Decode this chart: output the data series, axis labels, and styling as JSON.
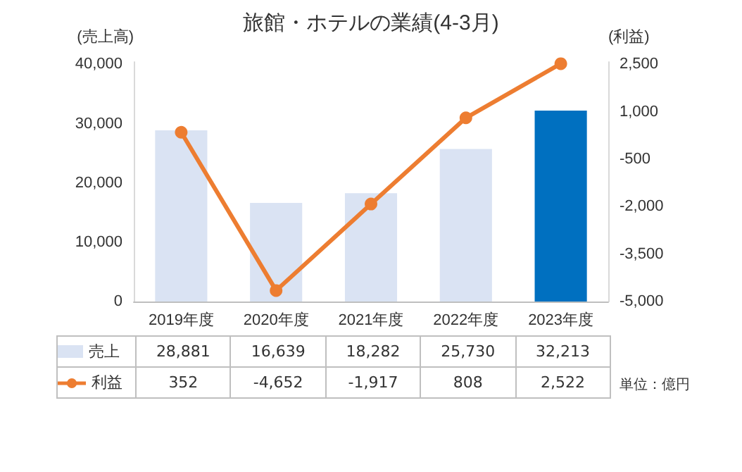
{
  "chart_data": {
    "type": "bar",
    "title": "旅館・ホテルの業績(4-3月)",
    "ylabel": "(売上高)",
    "y2label": "(利益)",
    "categories": [
      "2019年度",
      "2020年度",
      "2021年度",
      "2022年度",
      "2023年度"
    ],
    "series": [
      {
        "name": "売上",
        "type": "bar",
        "color": "#dae3f3",
        "colors": [
          "#dae3f3",
          "#dae3f3",
          "#dae3f3",
          "#dae3f3",
          "#0070c0"
        ],
        "values": [
          28881,
          16639,
          18282,
          25730,
          32213
        ],
        "value_labels": [
          "28,881",
          "16,639",
          "18,282",
          "25,730",
          "32,213"
        ]
      },
      {
        "name": "利益",
        "type": "line",
        "axis": "y2",
        "color": "#ed7d31",
        "marker": "circle",
        "values": [
          352,
          -4652,
          -1917,
          808,
          2522
        ],
        "value_labels": [
          "352",
          "-4,652",
          "-1,917",
          "808",
          "2,522"
        ]
      }
    ],
    "ylim": [
      0,
      40400
    ],
    "yticks": [
      0,
      {
        "value": 10000,
        "label": "10,000"
      },
      {
        "value": 20000,
        "label": "20,000"
      },
      {
        "value": 30000,
        "label": "30,000"
      },
      {
        "value": 40000,
        "label": "40,000"
      }
    ],
    "y2lim": [
      -5000,
      2575
    ],
    "y2ticks": [
      {
        "value": -5000,
        "label": "-5,000"
      },
      {
        "value": -3500,
        "label": "-3,500"
      },
      {
        "value": -2000,
        "label": "-2,000"
      },
      {
        "value": -500,
        "label": "-500"
      },
      {
        "value": 1000,
        "label": "1,000"
      },
      {
        "value": 2500,
        "label": "2,500"
      }
    ],
    "grid": false,
    "legend": "bottom left",
    "annotations": [
      "単位：億円"
    ]
  }
}
